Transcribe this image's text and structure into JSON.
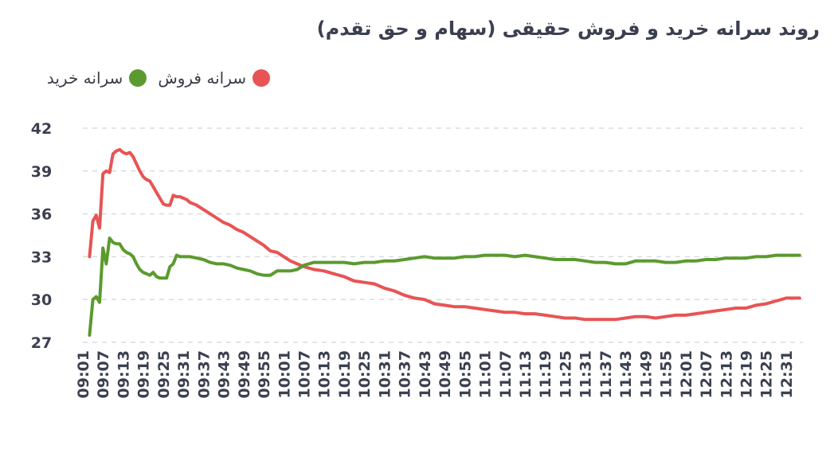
{
  "chart_data": {
    "type": "line",
    "title": "روند سرانه خرید و فروش حقیقی (سهام و حق تقدم)",
    "legend_position": "top-right",
    "grid": true,
    "ylim": [
      27,
      42
    ],
    "y_ticks": [
      27,
      30,
      33,
      36,
      39,
      42
    ],
    "x_ticks": [
      "09:01",
      "09:07",
      "09:13",
      "09:19",
      "09:25",
      "09:31",
      "09:37",
      "09:43",
      "09:49",
      "09:55",
      "10:01",
      "10:07",
      "10:13",
      "10:19",
      "10:25",
      "10:31",
      "10:37",
      "10:43",
      "10:49",
      "10:55",
      "11:01",
      "11:07",
      "11:13",
      "11:19",
      "11:25",
      "11:31",
      "11:37",
      "11:43",
      "11:49",
      "11:55",
      "12:01",
      "12:07",
      "12:13",
      "12:19",
      "12:25",
      "12:31"
    ],
    "series": [
      {
        "name": "سرانه فروش",
        "color": "#e85454",
        "points": [
          [
            "09:03",
            33.0
          ],
          [
            "09:04",
            35.5
          ],
          [
            "09:05",
            35.9
          ],
          [
            "09:06",
            35.0
          ],
          [
            "09:07",
            38.8
          ],
          [
            "09:08",
            39.0
          ],
          [
            "09:09",
            38.9
          ],
          [
            "09:10",
            40.2
          ],
          [
            "09:11",
            40.4
          ],
          [
            "09:12",
            40.5
          ],
          [
            "09:13",
            40.3
          ],
          [
            "09:14",
            40.2
          ],
          [
            "09:15",
            40.3
          ],
          [
            "09:16",
            40.0
          ],
          [
            "09:17",
            39.5
          ],
          [
            "09:18",
            39.0
          ],
          [
            "09:19",
            38.6
          ],
          [
            "09:20",
            38.4
          ],
          [
            "09:21",
            38.3
          ],
          [
            "09:22",
            37.9
          ],
          [
            "09:23",
            37.5
          ],
          [
            "09:24",
            37.1
          ],
          [
            "09:25",
            36.7
          ],
          [
            "09:26",
            36.6
          ],
          [
            "09:27",
            36.6
          ],
          [
            "09:28",
            37.3
          ],
          [
            "09:29",
            37.2
          ],
          [
            "09:30",
            37.2
          ],
          [
            "09:31",
            37.1
          ],
          [
            "09:32",
            37.0
          ],
          [
            "09:33",
            36.8
          ],
          [
            "09:35",
            36.6
          ],
          [
            "09:37",
            36.3
          ],
          [
            "09:39",
            36.0
          ],
          [
            "09:41",
            35.7
          ],
          [
            "09:43",
            35.4
          ],
          [
            "09:45",
            35.2
          ],
          [
            "09:47",
            34.9
          ],
          [
            "09:49",
            34.7
          ],
          [
            "09:51",
            34.4
          ],
          [
            "09:53",
            34.1
          ],
          [
            "09:55",
            33.8
          ],
          [
            "09:57",
            33.4
          ],
          [
            "09:59",
            33.3
          ],
          [
            "10:01",
            33.0
          ],
          [
            "10:03",
            32.7
          ],
          [
            "10:05",
            32.5
          ],
          [
            "10:07",
            32.3
          ],
          [
            "10:10",
            32.1
          ],
          [
            "10:13",
            32.0
          ],
          [
            "10:16",
            31.8
          ],
          [
            "10:19",
            31.6
          ],
          [
            "10:22",
            31.3
          ],
          [
            "10:25",
            31.2
          ],
          [
            "10:28",
            31.1
          ],
          [
            "10:31",
            30.8
          ],
          [
            "10:34",
            30.6
          ],
          [
            "10:37",
            30.3
          ],
          [
            "10:40",
            30.1
          ],
          [
            "10:43",
            30.0
          ],
          [
            "10:46",
            29.7
          ],
          [
            "10:49",
            29.6
          ],
          [
            "10:52",
            29.5
          ],
          [
            "10:55",
            29.5
          ],
          [
            "10:58",
            29.4
          ],
          [
            "11:01",
            29.3
          ],
          [
            "11:04",
            29.2
          ],
          [
            "11:07",
            29.1
          ],
          [
            "11:10",
            29.1
          ],
          [
            "11:13",
            29.0
          ],
          [
            "11:16",
            29.0
          ],
          [
            "11:19",
            28.9
          ],
          [
            "11:22",
            28.8
          ],
          [
            "11:25",
            28.7
          ],
          [
            "11:28",
            28.7
          ],
          [
            "11:31",
            28.6
          ],
          [
            "11:34",
            28.6
          ],
          [
            "11:37",
            28.6
          ],
          [
            "11:40",
            28.6
          ],
          [
            "11:43",
            28.7
          ],
          [
            "11:46",
            28.8
          ],
          [
            "11:49",
            28.8
          ],
          [
            "11:52",
            28.7
          ],
          [
            "11:55",
            28.8
          ],
          [
            "11:58",
            28.9
          ],
          [
            "12:01",
            28.9
          ],
          [
            "12:04",
            29.0
          ],
          [
            "12:07",
            29.1
          ],
          [
            "12:10",
            29.2
          ],
          [
            "12:13",
            29.3
          ],
          [
            "12:16",
            29.4
          ],
          [
            "12:19",
            29.4
          ],
          [
            "12:22",
            29.6
          ],
          [
            "12:25",
            29.7
          ],
          [
            "12:28",
            29.9
          ],
          [
            "12:31",
            30.1
          ],
          [
            "12:34",
            30.1
          ],
          [
            "12:35",
            30.1
          ]
        ]
      },
      {
        "name": "سرانه خرید",
        "color": "#5b9a2f",
        "points": [
          [
            "09:03",
            27.5
          ],
          [
            "09:04",
            30.0
          ],
          [
            "09:05",
            30.2
          ],
          [
            "09:06",
            29.8
          ],
          [
            "09:07",
            33.6
          ],
          [
            "09:08",
            32.5
          ],
          [
            "09:09",
            34.3
          ],
          [
            "09:10",
            34.0
          ],
          [
            "09:11",
            33.9
          ],
          [
            "09:12",
            33.9
          ],
          [
            "09:13",
            33.5
          ],
          [
            "09:14",
            33.3
          ],
          [
            "09:15",
            33.2
          ],
          [
            "09:16",
            33.0
          ],
          [
            "09:17",
            32.5
          ],
          [
            "09:18",
            32.1
          ],
          [
            "09:19",
            31.9
          ],
          [
            "09:20",
            31.8
          ],
          [
            "09:21",
            31.7
          ],
          [
            "09:22",
            31.9
          ],
          [
            "09:23",
            31.6
          ],
          [
            "09:24",
            31.5
          ],
          [
            "09:25",
            31.5
          ],
          [
            "09:26",
            31.5
          ],
          [
            "09:27",
            32.3
          ],
          [
            "09:28",
            32.5
          ],
          [
            "09:29",
            33.1
          ],
          [
            "09:30",
            33.0
          ],
          [
            "09:31",
            33.0
          ],
          [
            "09:33",
            33.0
          ],
          [
            "09:35",
            32.9
          ],
          [
            "09:37",
            32.8
          ],
          [
            "09:39",
            32.6
          ],
          [
            "09:41",
            32.5
          ],
          [
            "09:43",
            32.5
          ],
          [
            "09:45",
            32.4
          ],
          [
            "09:47",
            32.2
          ],
          [
            "09:49",
            32.1
          ],
          [
            "09:51",
            32.0
          ],
          [
            "09:53",
            31.8
          ],
          [
            "09:55",
            31.7
          ],
          [
            "09:57",
            31.7
          ],
          [
            "09:59",
            32.0
          ],
          [
            "10:01",
            32.0
          ],
          [
            "10:03",
            32.0
          ],
          [
            "10:05",
            32.1
          ],
          [
            "10:07",
            32.4
          ],
          [
            "10:10",
            32.6
          ],
          [
            "10:13",
            32.6
          ],
          [
            "10:16",
            32.6
          ],
          [
            "10:19",
            32.6
          ],
          [
            "10:22",
            32.5
          ],
          [
            "10:25",
            32.6
          ],
          [
            "10:28",
            32.6
          ],
          [
            "10:31",
            32.7
          ],
          [
            "10:34",
            32.7
          ],
          [
            "10:37",
            32.8
          ],
          [
            "10:40",
            32.9
          ],
          [
            "10:43",
            33.0
          ],
          [
            "10:46",
            32.9
          ],
          [
            "10:49",
            32.9
          ],
          [
            "10:52",
            32.9
          ],
          [
            "10:55",
            33.0
          ],
          [
            "10:58",
            33.0
          ],
          [
            "11:01",
            33.1
          ],
          [
            "11:04",
            33.1
          ],
          [
            "11:07",
            33.1
          ],
          [
            "11:10",
            33.0
          ],
          [
            "11:13",
            33.1
          ],
          [
            "11:16",
            33.0
          ],
          [
            "11:19",
            32.9
          ],
          [
            "11:22",
            32.8
          ],
          [
            "11:25",
            32.8
          ],
          [
            "11:28",
            32.8
          ],
          [
            "11:31",
            32.7
          ],
          [
            "11:34",
            32.6
          ],
          [
            "11:37",
            32.6
          ],
          [
            "11:40",
            32.5
          ],
          [
            "11:43",
            32.5
          ],
          [
            "11:46",
            32.7
          ],
          [
            "11:49",
            32.7
          ],
          [
            "11:52",
            32.7
          ],
          [
            "11:55",
            32.6
          ],
          [
            "11:58",
            32.6
          ],
          [
            "12:01",
            32.7
          ],
          [
            "12:04",
            32.7
          ],
          [
            "12:07",
            32.8
          ],
          [
            "12:10",
            32.8
          ],
          [
            "12:13",
            32.9
          ],
          [
            "12:16",
            32.9
          ],
          [
            "12:19",
            32.9
          ],
          [
            "12:22",
            33.0
          ],
          [
            "12:25",
            33.0
          ],
          [
            "12:28",
            33.1
          ],
          [
            "12:31",
            33.1
          ],
          [
            "12:34",
            33.1
          ],
          [
            "12:35",
            33.1
          ]
        ]
      }
    ]
  }
}
